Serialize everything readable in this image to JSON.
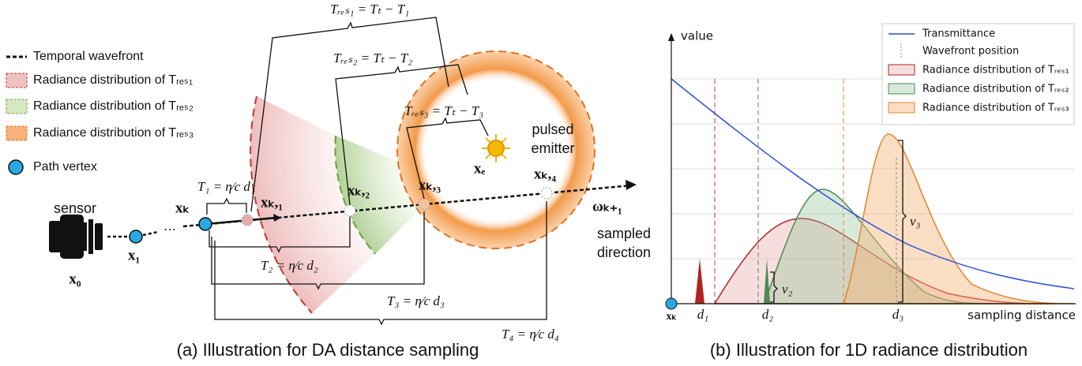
{
  "panel_a": {
    "legend": [
      "Temporal wavefront",
      "Radiance distribution of Tᵣₑₛ₁",
      "Radiance distribution of Tᵣₑₛ₂",
      "Radiance distribution of Tᵣₑₛ₃",
      "Path vertex"
    ],
    "sensor": "sensor",
    "x0": "x₀",
    "x1": "x₁",
    "dots": "⋯",
    "xk": "xₖ",
    "xk1": "xₖ,₁",
    "xk2": "xₖ,₂",
    "xk3": "xₖ,₃",
    "xk4": "xₖ,₄",
    "xe": "xₑ",
    "emitter": [
      "pulsed",
      "emitter"
    ],
    "omega": "ωₖ₊₁",
    "direction": [
      "sampled",
      "direction"
    ],
    "t1": "T₁ = η⁄c d₁",
    "t2": "T₂ = η⁄c d₂",
    "t3": "T₃ = η⁄c d₃",
    "t4": "T₄ = η⁄c d₄",
    "tres1": "Tᵣₑₛ₁ = Tₜ − T₁",
    "tres2": "Tᵣₑₛ₂ = Tₜ − T₂",
    "tres3": "Tᵣₑₛ₃ = Tₜ − T₃",
    "caption": "(a) Illustration for DA distance sampling"
  },
  "panel_b": {
    "y_label": "value",
    "x_label": "sampling distance",
    "legend": [
      "Transmittance",
      "Wavefront position",
      "Radiance distribution of Tᵣₑₛ₁",
      "Radiance distribution of Tᵣₑₛ₂",
      "Radiance distribution of Tᵣₑₛ₃"
    ],
    "xk": "xₖ",
    "d1": "d₁",
    "d2": "d₂",
    "d3": "d₃",
    "v2": "v₂",
    "v3": "v₃",
    "caption": "(b) Illustration for 1D radiance distribution"
  }
}
